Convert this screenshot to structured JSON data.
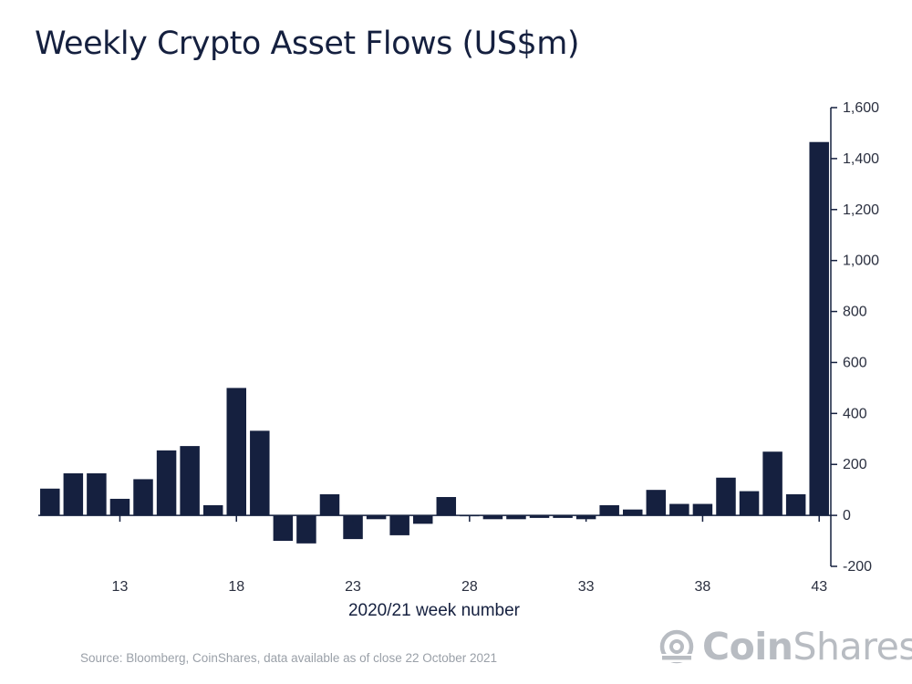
{
  "title": "Weekly Crypto Asset Flows (US$m)",
  "source": "Source: Bloomberg, CoinShares, data available as of close 22 October 2021",
  "logo": {
    "bold": "Coin",
    "regular": "Shares",
    "icon": "coinshares-logo-icon",
    "color": "#b8bcc2"
  },
  "colors": {
    "bar": "#15203f",
    "axis": "#15203f",
    "text": "#2a2f3f"
  },
  "chart_data": {
    "type": "bar",
    "xlabel": "2020/21 week number",
    "ylabel": "",
    "x": [
      10,
      11,
      12,
      13,
      14,
      15,
      16,
      17,
      18,
      19,
      20,
      21,
      22,
      23,
      24,
      25,
      26,
      27,
      28,
      29,
      30,
      31,
      32,
      33,
      34,
      35,
      36,
      37,
      38,
      39,
      40,
      41,
      42,
      43
    ],
    "values": [
      105,
      165,
      165,
      65,
      142,
      255,
      272,
      40,
      500,
      332,
      -100,
      -110,
      83,
      -93,
      -15,
      -78,
      -33,
      72,
      -3,
      -15,
      -15,
      -10,
      -10,
      -15,
      40,
      23,
      100,
      45,
      45,
      148,
      95,
      250,
      83,
      1465
    ],
    "xticks": [
      13,
      18,
      23,
      28,
      33,
      38,
      43
    ],
    "xtick_labels": [
      "13",
      "18",
      "23",
      "28",
      "33",
      "38",
      "43"
    ],
    "ylim": [
      -200,
      1600
    ],
    "yticks": [
      -200,
      0,
      200,
      400,
      600,
      800,
      1000,
      1200,
      1400,
      1600
    ],
    "ytick_labels": [
      "-200",
      "0",
      "200",
      "400",
      "600",
      "800",
      "1,000",
      "1,200",
      "1,400",
      "1,600"
    ],
    "y_axis_side": "right",
    "grid": false,
    "legend": "none"
  }
}
